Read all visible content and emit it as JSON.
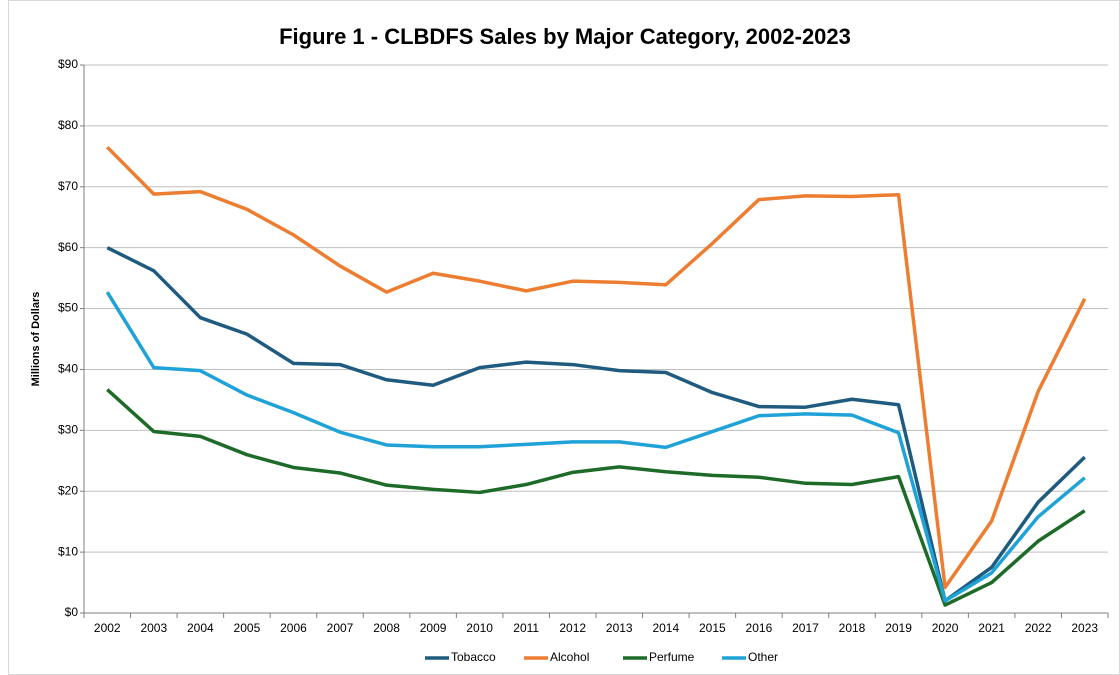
{
  "chart_data": {
    "type": "line",
    "title": "Figure 1 - CLBDFS Sales by Major Category, 2002-2023",
    "y_label": "Millions of Dollars",
    "categories": [
      "2002",
      "2003",
      "2004",
      "2005",
      "2006",
      "2007",
      "2008",
      "2009",
      "2010",
      "2011",
      "2012",
      "2013",
      "2014",
      "2015",
      "2016",
      "2017",
      "2018",
      "2019",
      "2020",
      "2021",
      "2022",
      "2023"
    ],
    "series": [
      {
        "name": "Tobacco",
        "color": "#1f5b7f",
        "values": [
          60,
          56.2,
          48.5,
          45.8,
          41,
          40.8,
          38.3,
          37.4,
          40.3,
          41.2,
          40.8,
          39.8,
          39.5,
          36.2,
          33.9,
          33.8,
          35.1,
          34.2,
          2,
          7.5,
          18.2,
          25.6
        ]
      },
      {
        "name": "Alcohol",
        "color": "#ed7d31",
        "values": [
          76.5,
          68.8,
          69.2,
          66.3,
          62.1,
          57,
          52.7,
          55.8,
          54.5,
          52.9,
          54.5,
          54.3,
          53.9,
          60.7,
          67.9,
          68.5,
          68.4,
          68.7,
          4.2,
          15.1,
          36.4,
          51.6
        ]
      },
      {
        "name": "Perfume",
        "color": "#1e6b29",
        "values": [
          36.7,
          29.8,
          29,
          26,
          23.9,
          23,
          21,
          20.3,
          19.8,
          21.1,
          23.1,
          24,
          23.2,
          22.6,
          22.3,
          21.3,
          21.1,
          22.4,
          1.3,
          5,
          11.8,
          16.8
        ]
      },
      {
        "name": "Other",
        "color": "#1fa2d8",
        "values": [
          52.7,
          40.3,
          39.8,
          35.8,
          32.9,
          29.7,
          27.6,
          27.3,
          27.3,
          27.7,
          28.1,
          28.1,
          27.2,
          29.8,
          32.4,
          32.7,
          32.5,
          29.6,
          2,
          6.6,
          15.8,
          22.2
        ]
      }
    ],
    "ylim": [
      0,
      90
    ],
    "yticks": [
      {
        "value": 0,
        "label": "$0"
      },
      {
        "value": 10,
        "label": "$10"
      },
      {
        "value": 20,
        "label": "$20"
      },
      {
        "value": 30,
        "label": "$30"
      },
      {
        "value": 40,
        "label": "$40"
      },
      {
        "value": 50,
        "label": "$50"
      },
      {
        "value": 60,
        "label": "$60"
      },
      {
        "value": 70,
        "label": "$70"
      },
      {
        "value": 80,
        "label": "$80"
      },
      {
        "value": 90,
        "label": "$90"
      }
    ],
    "grid": true,
    "legend": "bottom"
  }
}
